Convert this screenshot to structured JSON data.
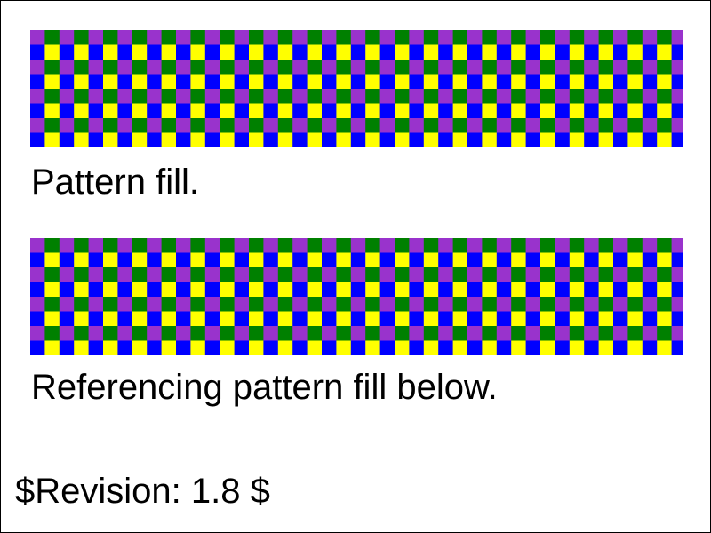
{
  "tests": [
    {
      "caption": "Pattern fill."
    },
    {
      "caption": "Referencing pattern fill below."
    }
  ],
  "footer": {
    "revision": "$Revision: 1.8 $"
  },
  "colors": {
    "purple": "#9933cc",
    "blue": "#0000ff",
    "green": "#008000",
    "yellow": "#ffff00",
    "border": "#000000",
    "background": "#ffffff"
  }
}
